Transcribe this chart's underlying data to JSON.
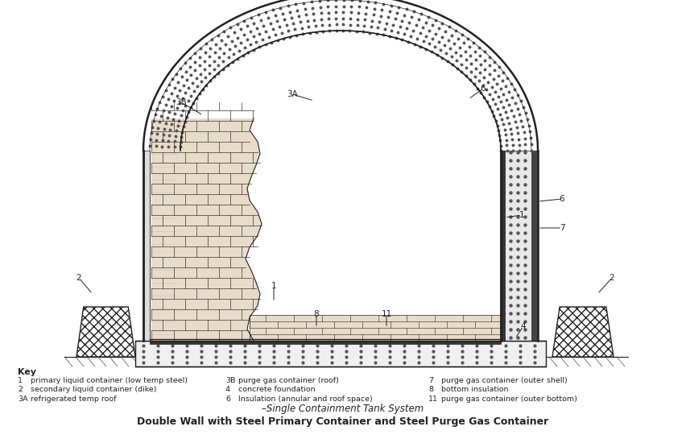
{
  "title_line1": "–Single Containment Tank System",
  "title_line2": "Double Wall with Steel Primary Container and Steel Purge Gas Container",
  "key_title": "Key",
  "bg_color": "#ffffff",
  "line_color": "#222222",
  "key_col1": [
    [
      "1",
      "primary liquid container (low temp steel)"
    ],
    [
      "2",
      "secondary liquid container (dike)"
    ],
    [
      "3A",
      "refrigerated temp roof"
    ]
  ],
  "key_col2": [
    [
      "3B",
      "purge gas container (roof)"
    ],
    [
      "4",
      "concrete foundation"
    ],
    [
      "6",
      "Insulation (annular and roof space)"
    ]
  ],
  "key_col3": [
    [
      "7",
      "purge gas container (outer shell)"
    ],
    [
      "8",
      "bottom insulation"
    ],
    [
      "11",
      "purge gas container (outer bottom)"
    ]
  ]
}
